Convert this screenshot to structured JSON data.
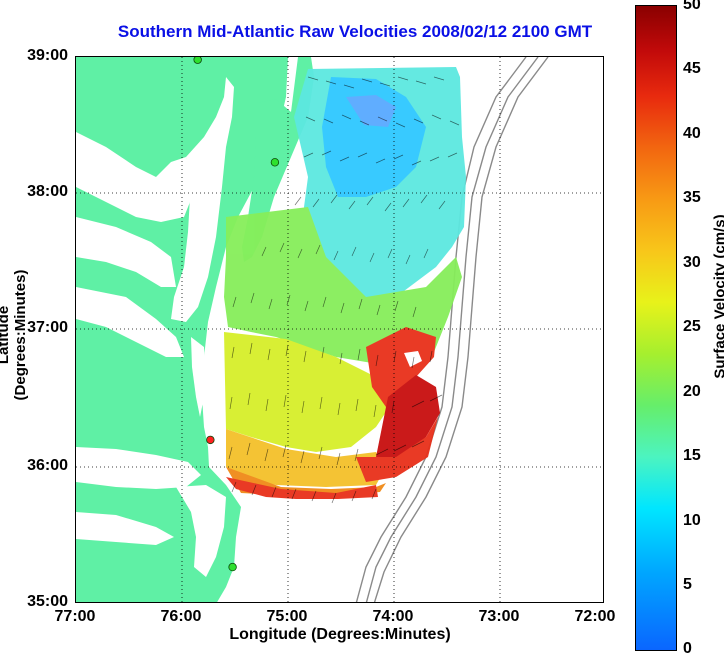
{
  "title": "Southern Mid-Atlantic Raw Velocities 2008/02/12 2100 GMT",
  "axes": {
    "xlabel": "Longitude (Degrees:Minutes)",
    "ylabel": "Latitude (Degrees:Minutes)",
    "x_ticks": [
      "77:00",
      "76:00",
      "75:00",
      "74:00",
      "73:00",
      "72:00"
    ],
    "y_ticks": [
      "39:00",
      "38:00",
      "37:00",
      "36:00",
      "35:00"
    ]
  },
  "colorbar": {
    "label": "Surface Velocity (cm/s)",
    "ticks": [
      "50",
      "45",
      "40",
      "35",
      "30",
      "25",
      "20",
      "15",
      "10",
      "5",
      "0"
    ]
  },
  "colors": {
    "land": "#5ff0a5",
    "title": "#0a10e6",
    "station": "#2ee02e",
    "station_active": "#ff2020"
  },
  "map": {
    "lon_range": [
      -77.0,
      -72.0
    ],
    "lat_range": [
      35.0,
      39.0
    ],
    "grid": true,
    "stations": [
      {
        "lon": -75.85,
        "lat": 38.98,
        "color_role": "station"
      },
      {
        "lon": -75.12,
        "lat": 38.23,
        "color_role": "station"
      },
      {
        "lon": -75.73,
        "lat": 36.2,
        "color_role": "station_active"
      },
      {
        "lon": -75.52,
        "lat": 35.27,
        "color_role": "station"
      }
    ]
  }
}
